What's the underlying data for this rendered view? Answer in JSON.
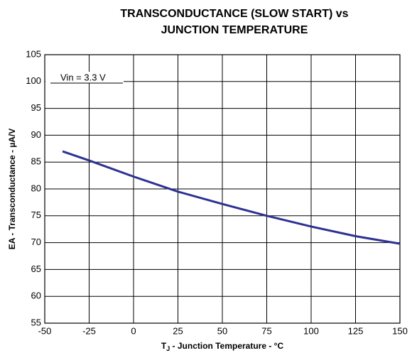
{
  "chart_data": {
    "type": "line",
    "title": [
      "TRANSCONDUCTANCE (SLOW START) vs",
      "JUNCTION TEMPERATURE"
    ],
    "xlabel": [
      "T",
      "J",
      " - Junction Temperature - °C"
    ],
    "ylabel": "EA - Transconductance - µA/V",
    "annotation": "Vin = 3.3 V",
    "x": [
      -40,
      -25,
      0,
      25,
      50,
      75,
      100,
      125,
      150
    ],
    "series": [
      {
        "color": "#2e3192",
        "values": [
          87,
          85.3,
          82.3,
          79.5,
          77.2,
          75,
          73,
          71.2,
          69.8
        ]
      }
    ],
    "xlim": [
      -50,
      150
    ],
    "xticks": [
      -50,
      -25,
      0,
      25,
      50,
      75,
      100,
      125,
      150
    ],
    "ylim": [
      55,
      105
    ],
    "yticks": [
      55,
      60,
      65,
      70,
      75,
      80,
      85,
      90,
      95,
      100,
      105
    ],
    "grid": true
  }
}
